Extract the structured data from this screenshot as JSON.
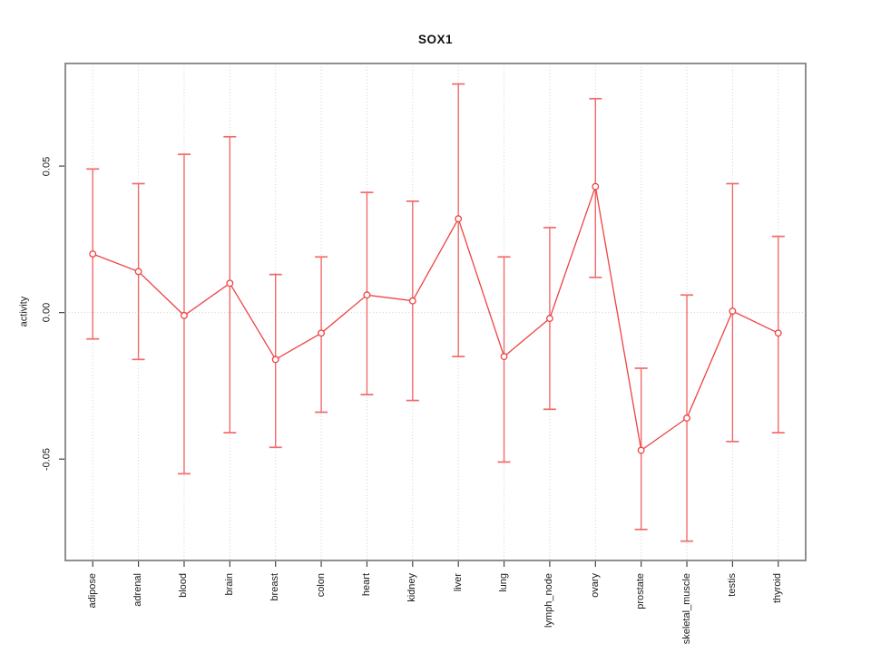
{
  "header": {
    "title": "SOX1"
  },
  "axes": {
    "ylabel": "activity",
    "yticks": [
      {
        "value": 0.05,
        "label": "0.05"
      },
      {
        "value": 0.0,
        "label": "0.00"
      },
      {
        "value": -0.05,
        "label": "-0.05"
      }
    ]
  },
  "colors": {
    "series_red": "#ee4242",
    "errorbar_red": "#f26a6a",
    "grid_gray": "#d0d0d0",
    "box_gray": "#8f8f8f",
    "tick_gray": "#444444",
    "text_dark": "#1a1a1a",
    "background": "#ffffff",
    "point_fill": "#ffffff"
  },
  "chart_data": {
    "type": "line",
    "subtype": "points-with-error-bars",
    "title": "SOX1",
    "xlabel": "",
    "ylabel": "activity",
    "categories": [
      "adipose",
      "adrenal",
      "blood",
      "brain",
      "breast",
      "colon",
      "heart",
      "kidney",
      "liver",
      "lung",
      "lymph_node",
      "ovary",
      "prostate",
      "skeletal_muscle",
      "testis",
      "thyroid"
    ],
    "series": [
      {
        "name": "mean",
        "values": [
          0.02,
          0.014,
          -0.001,
          0.01,
          -0.016,
          -0.007,
          0.006,
          0.004,
          0.032,
          -0.015,
          -0.002,
          0.043,
          -0.047,
          -0.036,
          0.0005,
          -0.007
        ]
      },
      {
        "name": "upper",
        "values": [
          0.049,
          0.044,
          0.054,
          0.06,
          0.013,
          0.019,
          0.041,
          0.038,
          0.078,
          0.019,
          0.029,
          0.073,
          -0.019,
          0.006,
          0.044,
          0.026
        ]
      },
      {
        "name": "lower",
        "values": [
          -0.009,
          -0.016,
          -0.055,
          -0.041,
          -0.046,
          -0.034,
          -0.028,
          -0.03,
          -0.015,
          -0.051,
          -0.033,
          0.012,
          -0.074,
          -0.078,
          -0.044,
          -0.041
        ]
      }
    ],
    "ylim": [
      -0.0846,
      0.085
    ],
    "yticks": [
      0.05,
      0.0,
      -0.05
    ],
    "grid": "vertical dotted gridline at each category; dotted horizontal line at y=0",
    "legend": "none",
    "marker": "open-circle",
    "series_color": "#ee4242"
  }
}
